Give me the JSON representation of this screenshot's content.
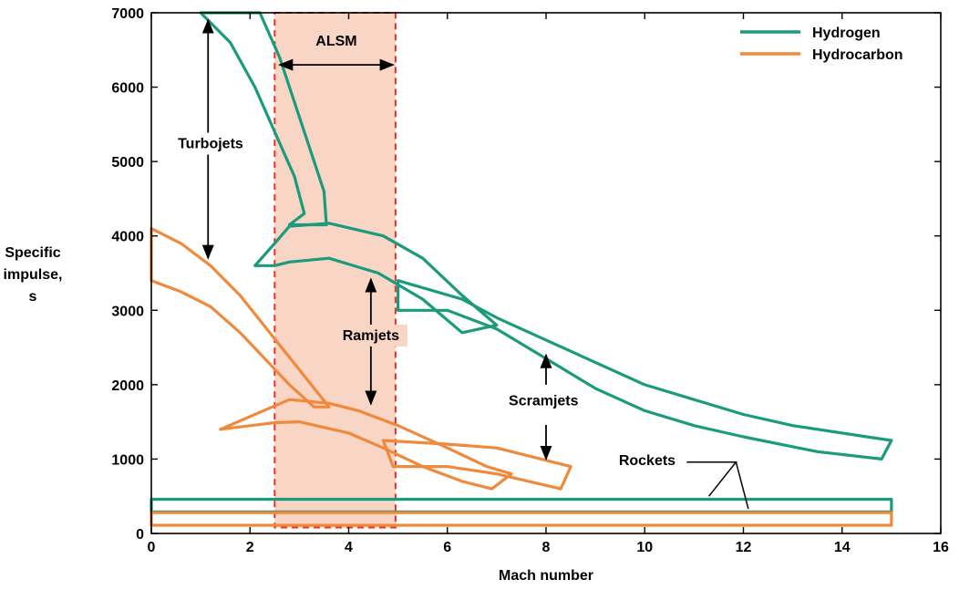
{
  "chart_data": {
    "type": "area",
    "title": "",
    "xlabel": "Mach number",
    "ylabel_lines": [
      "Specific",
      "impulse,",
      "s"
    ],
    "xlim": [
      0,
      16
    ],
    "ylim": [
      0,
      7000
    ],
    "xticks": [
      0,
      2,
      4,
      6,
      8,
      10,
      12,
      14,
      16
    ],
    "yticks": [
      0,
      1000,
      2000,
      3000,
      4000,
      5000,
      6000,
      7000
    ],
    "grid": false,
    "legend_position": "top-right",
    "colors": {
      "hydrogen": "#1a9b7b",
      "hydrocarbon": "#ef8a3c",
      "alsm_fill": "#f8d5c4",
      "alsm_border": "#e8332c"
    },
    "series": [
      {
        "name": "Hydrogen",
        "color": "#1a9b7b"
      },
      {
        "name": "Hydrocarbon",
        "color": "#ef8a3c"
      }
    ],
    "regions": [
      {
        "id": "turbojet-hydrogen",
        "fuel": "Hydrogen",
        "outline": [
          [
            1,
            7000
          ],
          [
            2.2,
            7000
          ],
          [
            2.6,
            6400
          ],
          [
            3,
            5600
          ],
          [
            3.3,
            5000
          ],
          [
            3.5,
            4600
          ],
          [
            3.55,
            4150
          ],
          [
            2.8,
            4150
          ],
          [
            3.1,
            4300
          ],
          [
            2.9,
            4800
          ],
          [
            2.5,
            5400
          ],
          [
            2.1,
            6000
          ],
          [
            1.6,
            6600
          ],
          [
            1,
            7000
          ]
        ]
      },
      {
        "id": "ramjet-hydrogen",
        "fuel": "Hydrogen",
        "outline": [
          [
            2.1,
            3600
          ],
          [
            2.5,
            3900
          ],
          [
            2.8,
            4130
          ],
          [
            3.6,
            4170
          ],
          [
            4.7,
            4000
          ],
          [
            5.5,
            3700
          ],
          [
            6.3,
            3200
          ],
          [
            7,
            2800
          ],
          [
            6.3,
            2700
          ],
          [
            5.5,
            3150
          ],
          [
            4.6,
            3500
          ],
          [
            3.6,
            3700
          ],
          [
            2.8,
            3650
          ],
          [
            2.5,
            3600
          ],
          [
            2.1,
            3600
          ]
        ]
      },
      {
        "id": "scramjet-hydrogen",
        "fuel": "Hydrogen",
        "outline": [
          [
            5,
            3400
          ],
          [
            6.3,
            3150
          ],
          [
            7,
            2900
          ],
          [
            8,
            2600
          ],
          [
            9,
            2300
          ],
          [
            10,
            2000
          ],
          [
            11,
            1800
          ],
          [
            12,
            1600
          ],
          [
            13,
            1450
          ],
          [
            14.5,
            1300
          ],
          [
            15,
            1250
          ],
          [
            14.8,
            1000
          ],
          [
            13.5,
            1100
          ],
          [
            12,
            1300
          ],
          [
            11,
            1450
          ],
          [
            10,
            1650
          ],
          [
            9,
            1950
          ],
          [
            8,
            2350
          ],
          [
            7,
            2750
          ],
          [
            6,
            3000
          ],
          [
            5,
            3000
          ],
          [
            5,
            3400
          ]
        ]
      },
      {
        "id": "rocket-hydrogen",
        "fuel": "Hydrogen",
        "outline": [
          [
            0,
            460
          ],
          [
            15,
            460
          ],
          [
            15,
            290
          ],
          [
            0,
            290
          ],
          [
            0,
            460
          ]
        ]
      },
      {
        "id": "turbojet-hydrocarbon",
        "fuel": "Hydrocarbon",
        "outline": [
          [
            0,
            4100
          ],
          [
            0.6,
            3900
          ],
          [
            1.2,
            3600
          ],
          [
            1.8,
            3200
          ],
          [
            2.4,
            2700
          ],
          [
            3,
            2200
          ],
          [
            3.6,
            1700
          ],
          [
            3.3,
            1700
          ],
          [
            2.8,
            2000
          ],
          [
            2.3,
            2350
          ],
          [
            1.8,
            2700
          ],
          [
            1.2,
            3050
          ],
          [
            0.6,
            3250
          ],
          [
            0,
            3400
          ],
          [
            0,
            4100
          ]
        ]
      },
      {
        "id": "ramjet-hydrocarbon",
        "fuel": "Hydrocarbon",
        "outline": [
          [
            1.4,
            1400
          ],
          [
            2.8,
            1800
          ],
          [
            3.6,
            1750
          ],
          [
            4.2,
            1650
          ],
          [
            5,
            1450
          ],
          [
            6,
            1150
          ],
          [
            6.8,
            900
          ],
          [
            7.3,
            800
          ],
          [
            6.9,
            600
          ],
          [
            6.3,
            700
          ],
          [
            5.5,
            900
          ],
          [
            4.7,
            1150
          ],
          [
            4,
            1350
          ],
          [
            3,
            1500
          ],
          [
            2.5,
            1490
          ],
          [
            1.4,
            1400
          ]
        ]
      },
      {
        "id": "scramjet-hydrocarbon",
        "fuel": "Hydrocarbon",
        "outline": [
          [
            4.7,
            1250
          ],
          [
            6,
            1200
          ],
          [
            7,
            1150
          ],
          [
            8.5,
            900
          ],
          [
            8.3,
            600
          ],
          [
            7,
            800
          ],
          [
            6,
            900
          ],
          [
            4.9,
            900
          ],
          [
            4.7,
            1250
          ]
        ]
      },
      {
        "id": "rocket-hydrocarbon",
        "fuel": "Hydrocarbon",
        "outline": [
          [
            0,
            280
          ],
          [
            15,
            280
          ],
          [
            15,
            110
          ],
          [
            0,
            110
          ],
          [
            0,
            280
          ]
        ]
      }
    ],
    "alsm_band": {
      "x": [
        2.5,
        4.95
      ],
      "label": "ALSM"
    },
    "labels": {
      "alsm": "ALSM",
      "turbojets": "Turbojets",
      "ramjets": "Ramjets",
      "scramjets": "Scramjets",
      "rockets": "Rockets"
    },
    "arrows": [
      {
        "id": "alsm-arrow",
        "from": [
          2.6,
          6300
        ],
        "to": [
          4.9,
          6300
        ],
        "both": true
      },
      {
        "id": "turbojet-arrow",
        "from": [
          1.15,
          6900
        ],
        "to": [
          1.15,
          3700
        ],
        "both": true
      },
      {
        "id": "ramjet-arrow",
        "from": [
          4.45,
          3420
        ],
        "to": [
          4.45,
          1740
        ],
        "both": true
      },
      {
        "id": "scramjet-arrow-up",
        "from": [
          8,
          2000
        ],
        "to": [
          8,
          2400
        ],
        "both": false
      },
      {
        "id": "scramjet-arrow-down",
        "from": [
          8,
          1460
        ],
        "to": [
          8,
          1000
        ],
        "both": false
      }
    ]
  }
}
